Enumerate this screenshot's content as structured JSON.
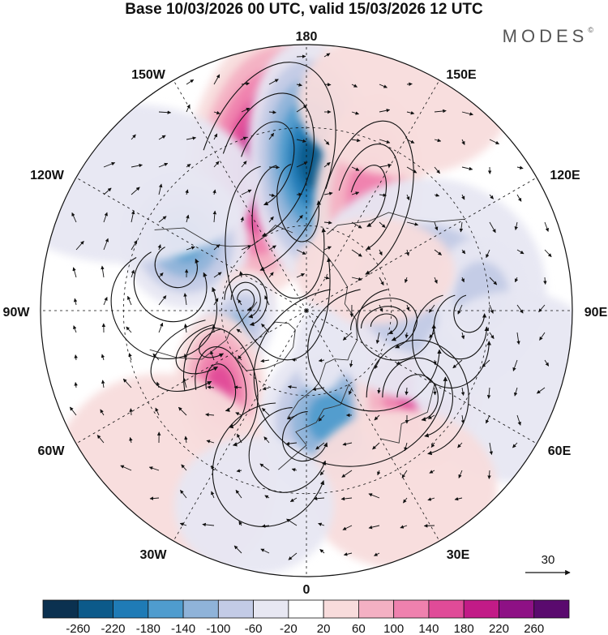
{
  "title": "Base 10/03/2026 00 UTC, valid 15/03/2026 12 UTC",
  "brand": "MODES",
  "brand_mark": "©",
  "longitude_labels": {
    "lon_180": "180",
    "lon_150E": "150E",
    "lon_120E": "120E",
    "lon_90E": "90E",
    "lon_60E": "60E",
    "lon_30E": "30E",
    "lon_0": "0",
    "lon_30W": "30W",
    "lon_60W": "60W",
    "lon_90W": "90W",
    "lon_120W": "120W",
    "lon_150W": "150W"
  },
  "vector_reference": {
    "label": "30"
  },
  "colorbar": {
    "labels": [
      "-260",
      "-220",
      "-180",
      "-140",
      "-100",
      "-60",
      "-20",
      "20",
      "60",
      "100",
      "140",
      "180",
      "220",
      "260"
    ],
    "colors": [
      "#0b3150",
      "#0c5a8a",
      "#1f7bb6",
      "#4f9cce",
      "#8fb3d9",
      "#c3cbe6",
      "#e7e7f2",
      "#ffffff",
      "#f8dcdc",
      "#f4b0c3",
      "#ef81ae",
      "#e04b98",
      "#c21b87",
      "#8e1185",
      "#5a0a6e"
    ]
  },
  "anomaly_cells": [
    {
      "lon": -165,
      "lat": 38,
      "value": 250,
      "rx": 0.3,
      "ry": 0.52,
      "rot": 10
    },
    {
      "lon": 178,
      "lat": 40,
      "value": -240,
      "rx": 0.24,
      "ry": 0.46,
      "rot": -4
    },
    {
      "lon": 152,
      "lat": 45,
      "value": 150,
      "rx": 0.2,
      "ry": 0.38,
      "rot": 8
    },
    {
      "lon": -120,
      "lat": 42,
      "value": -190,
      "rx": 0.24,
      "ry": 0.26,
      "rot": -20
    },
    {
      "lon": -100,
      "lat": 68,
      "value": 70,
      "rx": 0.1,
      "ry": 0.12,
      "rot": 0
    },
    {
      "lon": -72,
      "lat": 62,
      "value": -120,
      "rx": 0.14,
      "ry": 0.24,
      "rot": 30
    },
    {
      "lon": -48,
      "lat": 50,
      "value": 165,
      "rx": 0.17,
      "ry": 0.28,
      "rot": -5
    },
    {
      "lon": 12,
      "lat": 52,
      "value": -170,
      "rx": 0.26,
      "ry": 0.3,
      "rot": 15
    },
    {
      "lon": 52,
      "lat": 42,
      "value": 180,
      "rx": 0.24,
      "ry": 0.27,
      "rot": 0
    },
    {
      "lon": 80,
      "lat": 62,
      "value": 120,
      "rx": 0.16,
      "ry": 0.12,
      "rot": -10
    },
    {
      "lon": 100,
      "lat": 48,
      "value": -90,
      "rx": 0.45,
      "ry": 0.42,
      "rot": 0
    },
    {
      "lon": 95,
      "lat": 32,
      "value": -110,
      "rx": 0.18,
      "ry": 0.22,
      "rot": 0
    },
    {
      "lon": -40,
      "lat": 20,
      "value": 50,
      "rx": 0.42,
      "ry": 0.4,
      "rot": 20
    },
    {
      "lon": 120,
      "lat": 62,
      "value": 40,
      "rx": 0.3,
      "ry": 0.2,
      "rot": 0
    },
    {
      "lon": -125,
      "lat": 20,
      "value": -50,
      "rx": 0.5,
      "ry": 0.3,
      "rot": 0
    },
    {
      "lon": 70,
      "lat": 20,
      "value": -40,
      "rx": 0.38,
      "ry": 0.36,
      "rot": 0
    },
    {
      "lon": 155,
      "lat": 18,
      "value": 45,
      "rx": 0.4,
      "ry": 0.28,
      "rot": 0
    },
    {
      "lon": 28,
      "lat": 25,
      "value": 45,
      "rx": 0.36,
      "ry": 0.3,
      "rot": 0
    },
    {
      "lon": -15,
      "lat": 25,
      "value": -35,
      "rx": 0.3,
      "ry": 0.26,
      "rot": 0
    },
    {
      "lon": 20,
      "lat": 75,
      "value": -60,
      "rx": 0.1,
      "ry": 0.16,
      "rot": 0
    }
  ]
}
